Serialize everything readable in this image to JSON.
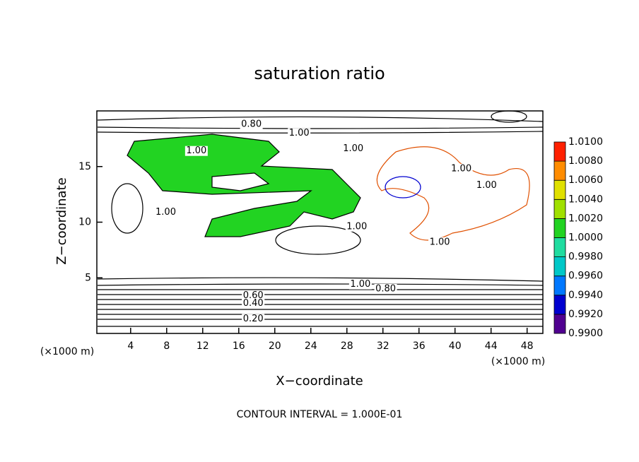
{
  "chart_data": {
    "type": "contour",
    "title": "saturation ratio",
    "x_label": "X−coordinate",
    "y_label": "Z−coordinate",
    "x_unit_left": "(×1000 m)",
    "x_unit_right": "(×1000 m)",
    "footer": "CONTOUR INTERVAL = 1.000E-01",
    "xlim": [
      0.25,
      49.75
    ],
    "xticks": [
      4,
      8,
      12,
      16,
      20,
      24,
      28,
      32,
      36,
      40,
      44,
      48
    ],
    "ylim": [
      0,
      20
    ],
    "yticks": [
      5,
      10,
      15
    ],
    "contour_labels": [
      {
        "text": "0.80",
        "x": 17.4,
        "y": 18.8
      },
      {
        "text": "1.00",
        "x": 22.7,
        "y": 18.0
      },
      {
        "text": "1.00",
        "x": 11.3,
        "y": 16.4
      },
      {
        "text": "1.00",
        "x": 28.7,
        "y": 16.6
      },
      {
        "text": "1.00",
        "x": 40.7,
        "y": 14.8
      },
      {
        "text": "1.00",
        "x": 43.5,
        "y": 13.3
      },
      {
        "text": "1.00",
        "x": 7.9,
        "y": 10.9
      },
      {
        "text": "1.00",
        "x": 29.1,
        "y": 9.6
      },
      {
        "text": "1.00",
        "x": 38.3,
        "y": 8.2
      },
      {
        "text": "1.00",
        "x": 29.5,
        "y": 4.4
      },
      {
        "text": "0.80",
        "x": 32.3,
        "y": 4.0
      },
      {
        "text": "0.60",
        "x": 17.6,
        "y": 3.4
      },
      {
        "text": "0.40",
        "x": 17.6,
        "y": 2.7
      },
      {
        "text": "0.20",
        "x": 17.6,
        "y": 1.3
      }
    ],
    "colorbar": {
      "levels": [
        {
          "value": 0.99,
          "label": "0.9900"
        },
        {
          "value": 0.992,
          "label": "0.9920"
        },
        {
          "value": 0.994,
          "label": "0.9940"
        },
        {
          "value": 0.996,
          "label": "0.9960"
        },
        {
          "value": 0.998,
          "label": "0.9980"
        },
        {
          "value": 1.0,
          "label": "1.0000"
        },
        {
          "value": 1.002,
          "label": "1.0020"
        },
        {
          "value": 1.004,
          "label": "1.0040"
        },
        {
          "value": 1.006,
          "label": "1.0060"
        },
        {
          "value": 1.008,
          "label": "1.0080"
        },
        {
          "value": 1.01,
          "label": "1.0100"
        }
      ],
      "colors": [
        "#500090",
        "#0000d0",
        "#0078ff",
        "#00c8c8",
        "#20dca0",
        "#22d322",
        "#a0e000",
        "#e0e000",
        "#ff8c00",
        "#ff2000",
        "#f09090"
      ]
    }
  }
}
